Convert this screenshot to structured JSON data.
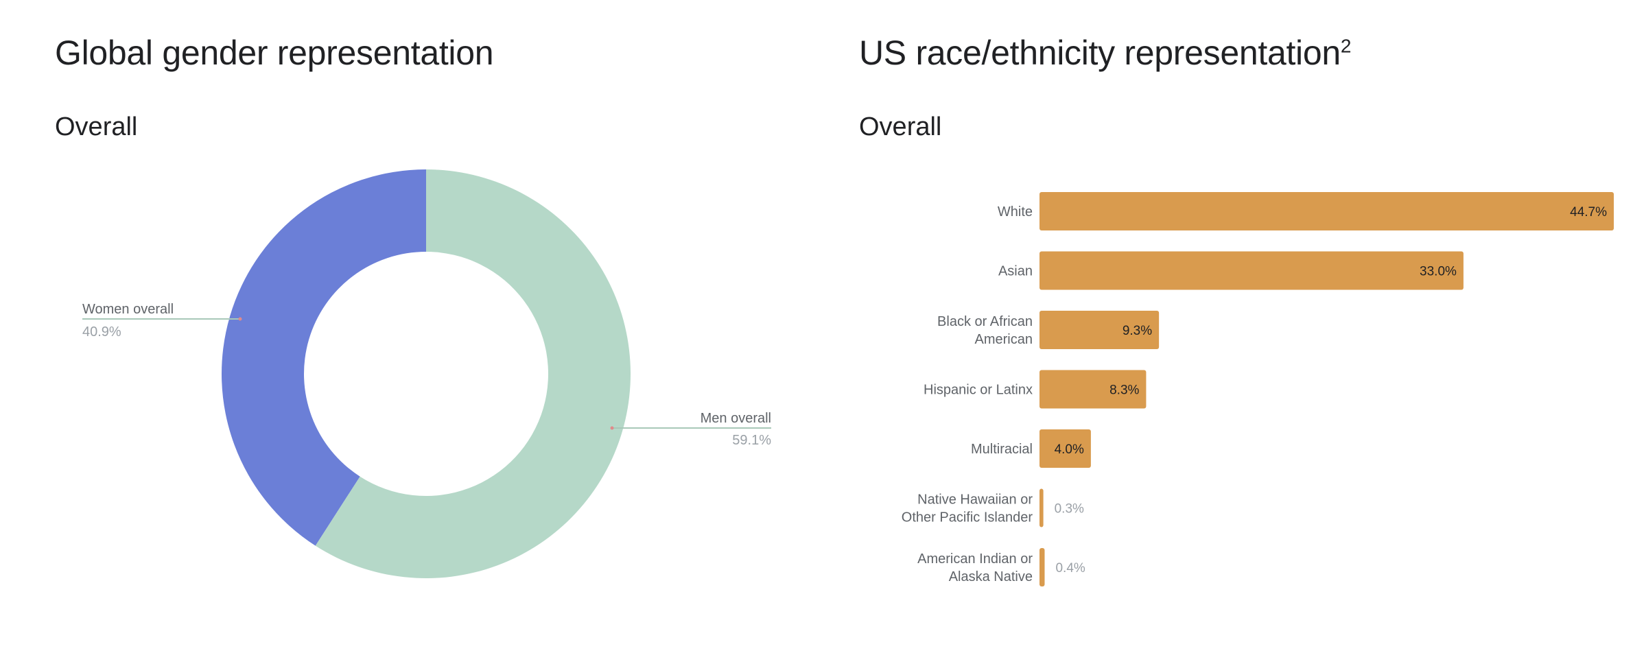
{
  "gender": {
    "title": "Global gender representation",
    "subtitle": "Overall"
  },
  "race": {
    "title": "US race/ethnicity representation",
    "title_superscript": "2",
    "subtitle": "Overall"
  },
  "chart_data": [
    {
      "type": "pie",
      "variant": "donut",
      "title": "Global gender representation",
      "subtitle": "Overall",
      "slices": [
        {
          "label": "Women overall",
          "value": 40.9,
          "value_label": "40.9%",
          "color": "#6b7fd7"
        },
        {
          "label": "Men overall",
          "value": 59.1,
          "value_label": "59.1%",
          "color": "#b5d8c8"
        }
      ]
    },
    {
      "type": "bar",
      "orientation": "horizontal",
      "title": "US race/ethnicity representation",
      "subtitle": "Overall",
      "bar_color": "#d99b4e",
      "categories": [
        "White",
        "Asian",
        "Black or African American",
        "Hispanic or Latinx",
        "Multiracial",
        "Native Hawaiian or Other Pacific Islander",
        "American Indian or Alaska Native"
      ],
      "category_lines": [
        [
          "White"
        ],
        [
          "Asian"
        ],
        [
          "Black or African",
          "American"
        ],
        [
          "Hispanic or Latinx"
        ],
        [
          "Multiracial"
        ],
        [
          "Native Hawaiian or",
          "Other Pacific Islander"
        ],
        [
          "American Indian or",
          "Alaska Native"
        ]
      ],
      "values": [
        44.7,
        33.0,
        9.3,
        8.3,
        4.0,
        0.3,
        0.4
      ],
      "value_labels": [
        "44.7%",
        "33.0%",
        "9.3%",
        "8.3%",
        "4.0%",
        "0.3%",
        "0.4%"
      ],
      "xlim": [
        0,
        44.7
      ],
      "grid": false
    }
  ]
}
